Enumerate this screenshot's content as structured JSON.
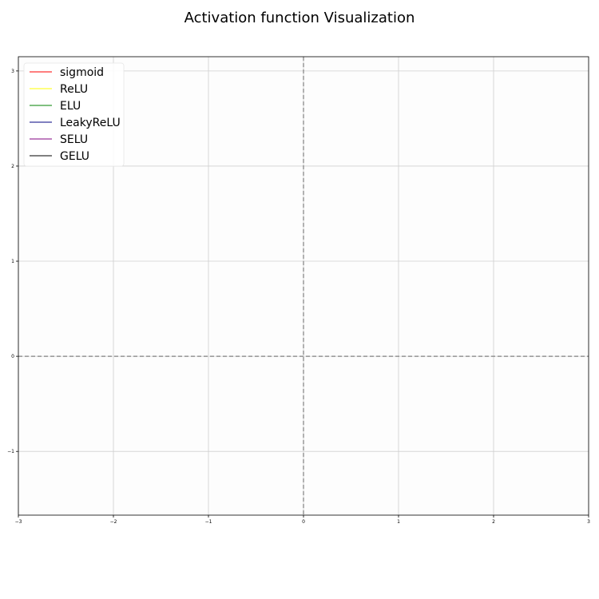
{
  "chart_data": {
    "type": "line",
    "title": "Activation function Visualization",
    "xlabel": "",
    "ylabel": "",
    "xlim": [
      -3,
      3
    ],
    "ylim": [
      -1.67,
      3.15
    ],
    "x_ticks": [
      -3,
      -2,
      -1,
      0,
      1,
      2,
      3
    ],
    "x_tick_labels": [
      "−3",
      "−2",
      "−1",
      "0",
      "1",
      "2",
      "3"
    ],
    "y_ticks": [
      -1,
      0,
      1,
      2,
      3
    ],
    "y_tick_labels": [
      "−1",
      "0",
      "1",
      "2",
      "3"
    ],
    "grid": true,
    "reference_lines": [
      {
        "orientation": "horizontal",
        "value": 0,
        "style": "dashed",
        "color": "#808080"
      },
      {
        "orientation": "vertical",
        "value": 0,
        "style": "dashed",
        "color": "#808080"
      }
    ],
    "legend_position": "top-left",
    "series": [
      {
        "name": "sigmoid",
        "color": "#ff0000",
        "x": [],
        "y": []
      },
      {
        "name": "ReLU",
        "color": "#ffff00",
        "x": [],
        "y": []
      },
      {
        "name": "ELU",
        "color": "#008000",
        "x": [],
        "y": []
      },
      {
        "name": "LeakyReLU",
        "color": "#000080",
        "x": [],
        "y": []
      },
      {
        "name": "SELU",
        "color": "#800080",
        "x": [],
        "y": []
      },
      {
        "name": "GELU",
        "color": "#000000",
        "x": [],
        "y": []
      }
    ]
  }
}
